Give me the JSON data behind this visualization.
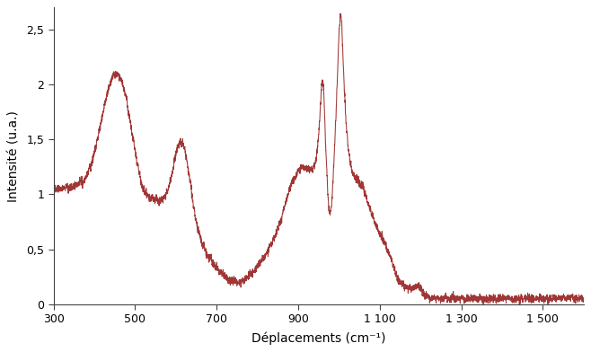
{
  "title": "",
  "xlabel": "Déplacements (cm⁻¹)",
  "ylabel": "Intensité (u.a.)",
  "line_color": "#9b2b2b",
  "background_color": "#ffffff",
  "xlim": [
    300,
    1600
  ],
  "ylim": [
    0,
    2.7
  ],
  "yticks": [
    0,
    0.5,
    1.0,
    1.5,
    2.0,
    2.5
  ],
  "xtick_values": [
    300,
    500,
    700,
    900,
    1100,
    1300,
    1500
  ],
  "xtick_labels": [
    "300",
    "500",
    "700",
    "900",
    "1 100",
    "1 300",
    "1 500"
  ],
  "figsize": [
    6.58,
    3.92
  ],
  "dpi": 100
}
